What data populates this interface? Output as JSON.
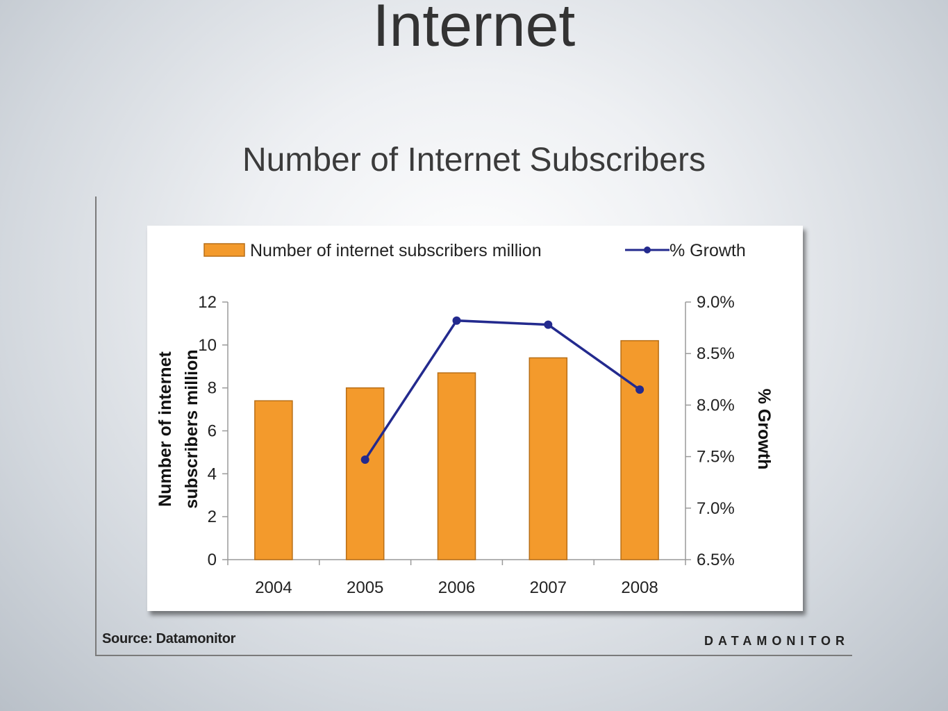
{
  "slide": {
    "title": "Internet",
    "subtitle": "Number of Internet Subscribers"
  },
  "footer": {
    "source": "Source: Datamonitor",
    "brand": "DATAMONITOR"
  },
  "colors": {
    "bar": "#F39A2C",
    "bar_stroke": "#B86E16",
    "line": "#232A8E",
    "axis": "#9a9a9a"
  },
  "chart_data": {
    "type": "bar",
    "categories": [
      "2004",
      "2005",
      "2006",
      "2007",
      "2008"
    ],
    "series": [
      {
        "name": "Number of internet subscribers  million",
        "type": "bar",
        "axis": "left",
        "values": [
          7.4,
          8.0,
          8.7,
          9.4,
          10.2
        ]
      },
      {
        "name": "% Growth",
        "type": "line",
        "axis": "right",
        "values": [
          null,
          7.47,
          8.82,
          8.78,
          8.15
        ]
      }
    ],
    "ylabel_left": [
      "Number of internet",
      "subscribers  million"
    ],
    "ylabel_right": "% Growth",
    "ylim_left": [
      0,
      12
    ],
    "ylim_right": [
      6.5,
      9.0
    ],
    "yticks_left": [
      "0",
      "2",
      "4",
      "6",
      "8",
      "10",
      "12"
    ],
    "yticks_right": [
      "6.5%",
      "7.0%",
      "7.5%",
      "8.0%",
      "8.5%",
      "9.0%"
    ],
    "legend_position": "top",
    "grid": false
  }
}
